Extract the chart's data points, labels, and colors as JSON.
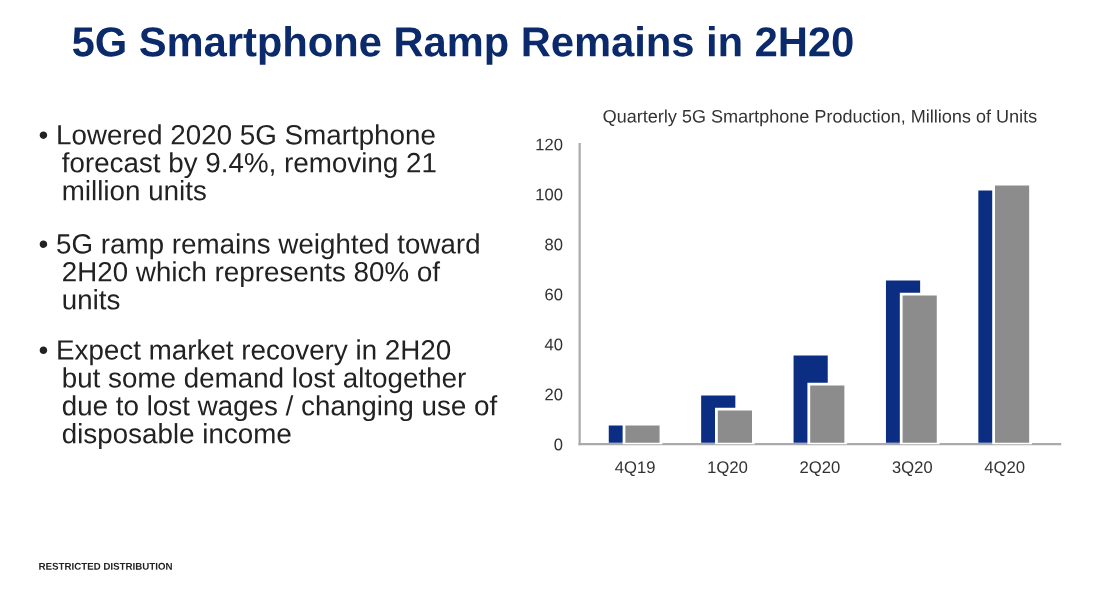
{
  "chart_data": {
    "type": "bar",
    "title": "5G Smartphone Ramp Remains in 2H20",
    "subtitle": "Quarterly 5G Smartphone Production, Millions of Units",
    "categories": [
      "4Q19",
      "1Q20",
      "2Q20",
      "3Q20",
      "4Q20"
    ],
    "series": [
      {
        "color": "#0b2d82",
        "values": [
          8,
          20,
          36,
          66,
          102
        ]
      },
      {
        "color": "#8c8c8c",
        "values": [
          8,
          14,
          24,
          60,
          104
        ]
      }
    ],
    "ylim": [
      0,
      120
    ],
    "yticks": [
      0,
      20,
      40,
      60,
      80,
      100,
      120
    ],
    "grid": false,
    "legend": false,
    "annotations": [
      "• Lowered 2020 5G Smartphone\n   forecast by 9.4%, removing 21\n   million units",
      "• 5G ramp remains weighted toward\n   2H20 which represents 80% of\n   units",
      "• Expect market recovery in 2H20\n   but some demand lost altogether\n   due to lost wages / changing use of\n   disposable income",
      "RESTRICTED DISTRIBUTION"
    ]
  }
}
